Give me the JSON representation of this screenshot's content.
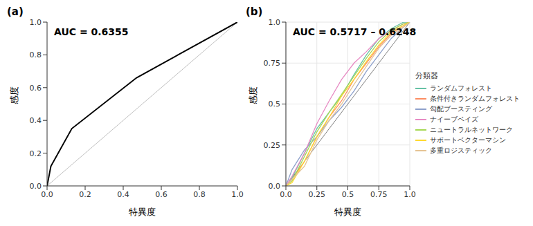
{
  "chart_data": [
    {
      "type": "line",
      "label": "(a)",
      "annotation": "AUC = 0.6355",
      "x_label": "特異度",
      "y_label": "感度",
      "x": [
        0,
        0.02,
        0.13,
        0.47,
        1
      ],
      "series": [
        {
          "color": "#000000",
          "values": [
            0,
            0.12,
            0.35,
            0.66,
            1
          ]
        }
      ],
      "reference_line": {
        "x": [
          0,
          1
        ],
        "values": [
          0,
          1
        ],
        "color": "#c0c0c0"
      },
      "xlim": [
        0,
        1
      ],
      "ylim": [
        0,
        1
      ],
      "xticks": [
        {
          "value": 0,
          "label": "0.0"
        },
        {
          "value": 0.2,
          "label": "0.2"
        },
        {
          "value": 0.4,
          "label": "0.4"
        },
        {
          "value": 0.6,
          "label": "0.6"
        },
        {
          "value": 0.8,
          "label": "0.8"
        },
        {
          "value": 1,
          "label": "1.0"
        }
      ],
      "yticks": [
        {
          "value": 0,
          "label": "0.0"
        },
        {
          "value": 0.2,
          "label": "0.2"
        },
        {
          "value": 0.4,
          "label": "0.4"
        },
        {
          "value": 0.6,
          "label": "0.6"
        },
        {
          "value": 0.8,
          "label": "0.8"
        },
        {
          "value": 1,
          "label": "1.0"
        }
      ],
      "grid": false
    },
    {
      "type": "line",
      "label": "(b)",
      "annotation": "AUC = 0.5717 – 0.6248",
      "x_label": "特異度",
      "y_label": "感度",
      "legend_title": "分類器",
      "legend": "right",
      "x": [
        0,
        0.05,
        0.15,
        0.25,
        0.35,
        0.45,
        0.55,
        0.65,
        0.75,
        0.85,
        0.95,
        1
      ],
      "series": [
        {
          "name": "ランダムフォレスト",
          "color": "#66c2a5",
          "values": [
            0,
            0.05,
            0.2,
            0.35,
            0.45,
            0.55,
            0.68,
            0.8,
            0.9,
            0.96,
            1,
            1
          ]
        },
        {
          "name": "条件付きランダムフォレスト",
          "color": "#fc8d62",
          "values": [
            0,
            0.04,
            0.15,
            0.3,
            0.42,
            0.52,
            0.65,
            0.75,
            0.85,
            0.93,
            0.98,
            1
          ]
        },
        {
          "name": "勾配ブースティング",
          "color": "#8da0cb",
          "values": [
            0,
            0.1,
            0.22,
            0.3,
            0.4,
            0.48,
            0.58,
            0.7,
            0.8,
            0.9,
            0.97,
            1
          ]
        },
        {
          "name": "ナイーブベイズ",
          "color": "#e78ac3",
          "values": [
            0,
            0.06,
            0.2,
            0.38,
            0.52,
            0.65,
            0.75,
            0.82,
            0.9,
            0.95,
            0.99,
            1
          ]
        },
        {
          "name": "ニュートラルネットワーク",
          "color": "#a6d854",
          "values": [
            0,
            0.03,
            0.18,
            0.33,
            0.45,
            0.56,
            0.67,
            0.78,
            0.88,
            0.95,
            0.99,
            1
          ]
        },
        {
          "name": "サポートベクターマシン",
          "color": "#ffd92f",
          "values": [
            0,
            0.02,
            0.15,
            0.3,
            0.42,
            0.55,
            0.65,
            0.76,
            0.86,
            0.94,
            0.98,
            1
          ]
        },
        {
          "name": "多重ロジスティック",
          "color": "#e5c494",
          "values": [
            0,
            0.04,
            0.12,
            0.28,
            0.4,
            0.5,
            0.62,
            0.73,
            0.84,
            0.92,
            0.97,
            1
          ]
        }
      ],
      "reference_line": {
        "x": [
          0,
          1
        ],
        "values": [
          0,
          1
        ],
        "color": "#808080"
      },
      "xlim": [
        0,
        1
      ],
      "ylim": [
        0,
        1
      ],
      "xticks": [
        {
          "value": 0,
          "label": "0.0"
        },
        0.25,
        0.5,
        0.75,
        {
          "value": 1,
          "label": "1.0"
        }
      ],
      "yticks": [
        {
          "value": 0,
          "label": "0.0"
        },
        0.25,
        0.5,
        0.75,
        {
          "value": 1,
          "label": "1.0"
        }
      ],
      "grid": true
    }
  ]
}
